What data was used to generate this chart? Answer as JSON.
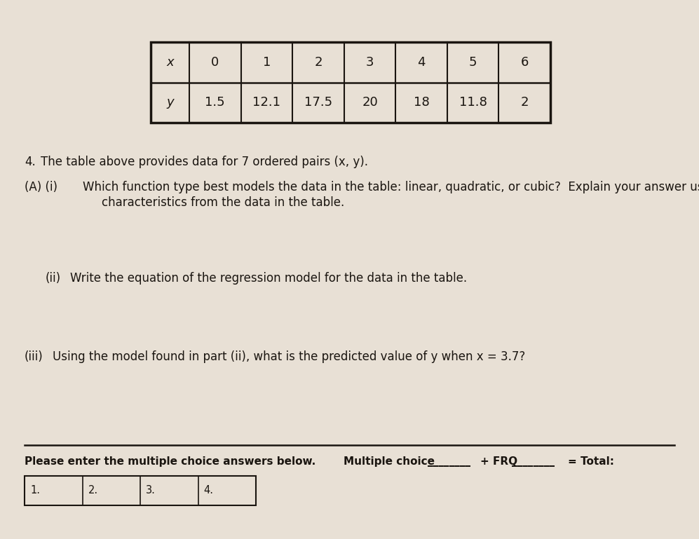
{
  "background_color": "#e8e0d5",
  "table_bg": "#e8e0d5",
  "text_color": "#1a1510",
  "table_border_color": "#1a1510",
  "table": {
    "x_label": "x",
    "y_label": "y",
    "x_values": [
      "0",
      "1",
      "2",
      "3",
      "4",
      "5",
      "6"
    ],
    "y_values": [
      "1.5",
      "12.1",
      "17.5",
      "20",
      "18",
      "11.8",
      "2"
    ]
  },
  "question_number": "4.",
  "question_intro": "The table above provides data for 7 ordered pairs (x, y).",
  "part_A_i_label": "(A) (i)",
  "part_A_i_text": "Which function type best models the data in the table: linear, quadratic, or cubic?  Explain your answer using",
  "part_A_i_text2": "characteristics from the data in the table.",
  "part_ii_label": "(ii)",
  "part_ii_text": "Write the equation of the regression model for the data in the table.",
  "part_iii_label": "(iii)",
  "part_iii_text": "Using the model found in part (ii), what is the predicted value of y when x = 3.7?",
  "footer_left_bold": "Please enter the multiple choice answers below.",
  "footer_right_text1": "Multiple choice ",
  "footer_right_text2": "+ FRQ",
  "footer_right_text3": "= Total:",
  "mc_box_labels": [
    "1.",
    "2.",
    "3.",
    "4."
  ],
  "font_size_body": 12,
  "font_size_table": 13,
  "font_size_footer": 11
}
